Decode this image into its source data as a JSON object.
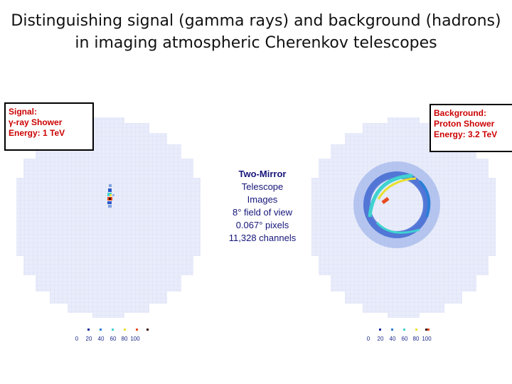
{
  "title": {
    "line1": "Distinguishing signal (gamma rays) and background (hadrons)",
    "line2": "in imaging atmospheric Cherenkov telescopes"
  },
  "signal_box": {
    "line1": "Signal:",
    "line2": "γ-ray Shower",
    "line3": "Energy: 1 TeV"
  },
  "background_box": {
    "line1": "Background:",
    "line2": "Proton Shower",
    "line3": "Energy: 3.2 TeV"
  },
  "center_label": {
    "line1": "Two-Mirror",
    "line2": "Telescope",
    "line3": "Images",
    "line4": "8° field of view",
    "line5": "0.067° pixels",
    "line6": "11,328 channels"
  },
  "color_scale": {
    "ticks": [
      "0",
      "20",
      "40",
      "60",
      "80",
      "100"
    ],
    "colors": [
      "#1a2a9c",
      "#2a7fd8",
      "#3fd2d0",
      "#e8e030",
      "#e84a20",
      "#3a1010"
    ]
  }
}
